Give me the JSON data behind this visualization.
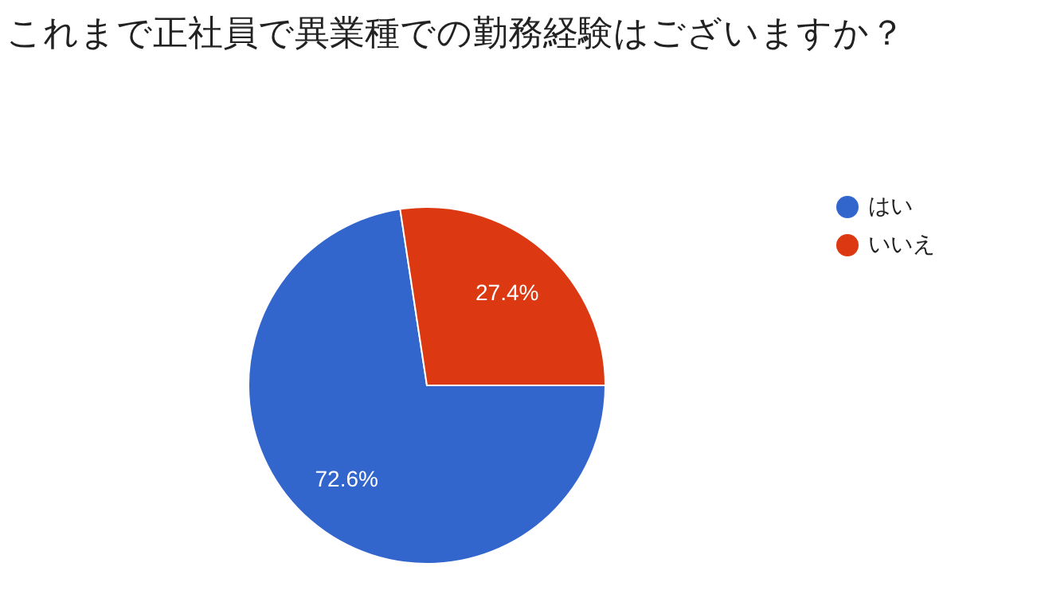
{
  "chart_data": {
    "type": "pie",
    "title": "これまで正社員で異業種での勤務経験はございますか？",
    "categories": [
      "はい",
      "いいえ"
    ],
    "values": [
      72.6,
      27.4
    ],
    "colors": [
      "#3366cc",
      "#dc3912"
    ],
    "value_labels": [
      "72.6%",
      "27.4%"
    ],
    "legend": "top right"
  }
}
